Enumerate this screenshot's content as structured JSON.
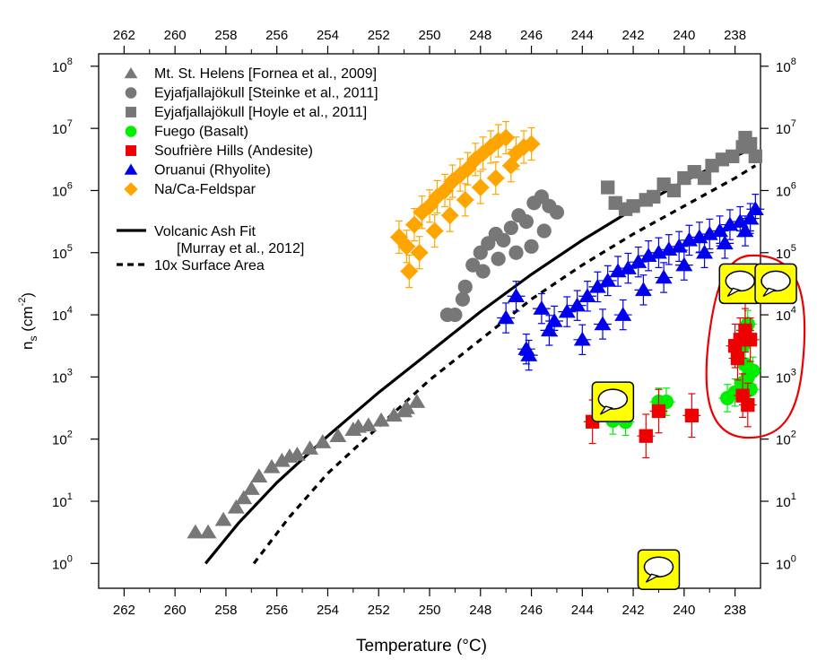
{
  "chart_data": {
    "type": "scatter",
    "xlabel": "Temperature (°C)",
    "ylabel_main": "n",
    "ylabel_sub": "s",
    "ylabel_unit_open": " (cm",
    "ylabel_unit_sup": "-2",
    "ylabel_unit_close": ")",
    "x_axis_reversed": true,
    "y_scale": "log",
    "xlim": [
      263,
      237
    ],
    "ylim_exponent": [
      -0.4,
      8.2
    ],
    "x_ticks": [
      "262",
      "260",
      "258",
      "256",
      "254",
      "252",
      "250",
      "248",
      "246",
      "244",
      "242",
      "240",
      "238"
    ],
    "y_ticks": [
      {
        "base": "10",
        "exp": "0"
      },
      {
        "base": "10",
        "exp": "1"
      },
      {
        "base": "10",
        "exp": "2"
      },
      {
        "base": "10",
        "exp": "3"
      },
      {
        "base": "10",
        "exp": "4"
      },
      {
        "base": "10",
        "exp": "5"
      },
      {
        "base": "10",
        "exp": "6"
      },
      {
        "base": "10",
        "exp": "7"
      },
      {
        "base": "10",
        "exp": "8"
      }
    ],
    "legend_placement": "top-left",
    "legend": [
      {
        "label": "Mt. St. Helens [Fornea et al., 2009]",
        "marker": "triangle",
        "color": "#777777"
      },
      {
        "label": "Eyjafjallajökull [Steinke et al., 2011]",
        "marker": "circle",
        "color": "#777777"
      },
      {
        "label": "Eyjafjallajökull [Hoyle et al., 2011]",
        "marker": "square",
        "color": "#777777"
      },
      {
        "label": "Fuego (Basalt)",
        "marker": "circle",
        "color": "#00ee00"
      },
      {
        "label": "Soufrière Hills (Andesite)",
        "marker": "square",
        "color": "#ee0000"
      },
      {
        "label": "Oruanui (Rhyolite)",
        "marker": "triangle",
        "color": "#0000ee"
      },
      {
        "label": "Na/Ca-Feldspar",
        "marker": "diamond",
        "color": "#ffa500"
      }
    ],
    "fit_legend": [
      {
        "label": "Volcanic Ash Fit",
        "style": "solid"
      },
      {
        "label": "[Murray et al., 2012]",
        "style": "none"
      },
      {
        "label": "10x Surface Area",
        "style": "dashed"
      }
    ],
    "series": [
      {
        "name": "Mt. St. Helens [Fornea et al., 2009]",
        "marker": "triangle",
        "color": "#777777",
        "errorbars": false,
        "points": [
          [
            259.2,
            0.5
          ],
          [
            258.7,
            0.5
          ],
          [
            258.1,
            0.7
          ],
          [
            257.6,
            0.9
          ],
          [
            257.3,
            1.05
          ],
          [
            257.0,
            1.2
          ],
          [
            256.7,
            1.4
          ],
          [
            256.2,
            1.55
          ],
          [
            255.8,
            1.65
          ],
          [
            255.2,
            1.75
          ],
          [
            254.7,
            1.85
          ],
          [
            254.2,
            1.95
          ],
          [
            253.6,
            2.05
          ],
          [
            253.0,
            2.15
          ],
          [
            252.4,
            2.22
          ],
          [
            251.9,
            2.3
          ],
          [
            251.4,
            2.38
          ],
          [
            251.0,
            2.45
          ],
          [
            250.5,
            2.6
          ],
          [
            250.9,
            2.5
          ],
          [
            252.8,
            2.2
          ],
          [
            255.5,
            1.72
          ]
        ]
      },
      {
        "name": "Eyjafjallajökull [Steinke et al., 2011]",
        "marker": "circle",
        "color": "#777777",
        "errorbars": false,
        "points": [
          [
            249.0,
            4.0
          ],
          [
            248.6,
            4.45
          ],
          [
            248.3,
            4.8
          ],
          [
            248.0,
            5.0
          ],
          [
            247.7,
            5.15
          ],
          [
            247.4,
            5.3
          ],
          [
            247.1,
            5.2
          ],
          [
            246.8,
            5.4
          ],
          [
            246.5,
            5.6
          ],
          [
            246.2,
            5.5
          ],
          [
            245.9,
            5.8
          ],
          [
            245.6,
            5.9
          ],
          [
            245.3,
            5.75
          ],
          [
            245.0,
            5.65
          ],
          [
            246.6,
            5.0
          ],
          [
            247.3,
            4.9
          ],
          [
            247.9,
            4.7
          ],
          [
            248.7,
            4.25
          ],
          [
            246.0,
            5.1
          ],
          [
            245.5,
            5.35
          ],
          [
            249.3,
            4.0
          ]
        ]
      },
      {
        "name": "Eyjafjallajökull [Hoyle et al., 2011]",
        "marker": "square",
        "color": "#777777",
        "errorbars": false,
        "points": [
          [
            243.0,
            6.05
          ],
          [
            242.7,
            5.8
          ],
          [
            242.3,
            5.7
          ],
          [
            242.0,
            5.75
          ],
          [
            241.5,
            5.85
          ],
          [
            241.2,
            5.9
          ],
          [
            240.8,
            6.1
          ],
          [
            240.4,
            6.0
          ],
          [
            240.0,
            6.2
          ],
          [
            239.6,
            6.3
          ],
          [
            239.2,
            6.2
          ],
          [
            238.9,
            6.4
          ],
          [
            238.5,
            6.5
          ],
          [
            238.1,
            6.55
          ],
          [
            237.7,
            6.7
          ],
          [
            237.4,
            6.75
          ],
          [
            237.2,
            6.55
          ],
          [
            237.6,
            6.85
          ]
        ]
      },
      {
        "name": "Fuego (Basalt)",
        "marker": "circle",
        "color": "#00ee00",
        "errorbars": true,
        "err": 0.22,
        "points": [
          [
            242.8,
            2.3
          ],
          [
            242.3,
            2.28
          ],
          [
            241.0,
            2.6
          ],
          [
            240.7,
            2.6
          ],
          [
            238.3,
            2.66
          ],
          [
            238.0,
            2.75
          ],
          [
            237.7,
            2.9
          ],
          [
            237.5,
            3.0
          ],
          [
            237.3,
            3.1
          ],
          [
            237.6,
            3.2
          ],
          [
            237.4,
            2.8
          ],
          [
            237.7,
            3.5
          ],
          [
            237.5,
            3.85
          ]
        ]
      },
      {
        "name": "Soufrière Hills (Andesite)",
        "marker": "square",
        "color": "#ee0000",
        "errorbars": true,
        "err": 0.35,
        "points": [
          [
            243.6,
            2.28
          ],
          [
            241.5,
            2.05
          ],
          [
            241.0,
            2.45
          ],
          [
            239.7,
            2.38
          ],
          [
            237.7,
            2.7
          ],
          [
            237.5,
            2.55
          ],
          [
            238.0,
            3.5
          ],
          [
            237.8,
            3.6
          ],
          [
            237.6,
            3.75
          ],
          [
            237.4,
            3.6
          ],
          [
            237.9,
            3.3
          ],
          [
            237.6,
            4.3
          ]
        ]
      },
      {
        "name": "Oruanui (Rhyolite)",
        "marker": "triangle",
        "color": "#0000ee",
        "errorbars": true,
        "err": 0.24,
        "points": [
          [
            247.0,
            3.95
          ],
          [
            246.6,
            4.3
          ],
          [
            246.2,
            3.45
          ],
          [
            246.1,
            3.35
          ],
          [
            245.6,
            4.1
          ],
          [
            245.1,
            3.9
          ],
          [
            244.6,
            4.05
          ],
          [
            244.2,
            4.15
          ],
          [
            243.8,
            4.3
          ],
          [
            243.4,
            4.45
          ],
          [
            243.0,
            4.55
          ],
          [
            242.6,
            4.7
          ],
          [
            242.2,
            4.75
          ],
          [
            241.8,
            4.85
          ],
          [
            241.4,
            4.95
          ],
          [
            241.0,
            5.0
          ],
          [
            240.6,
            5.05
          ],
          [
            240.2,
            5.1
          ],
          [
            239.8,
            5.2
          ],
          [
            239.4,
            5.25
          ],
          [
            239.0,
            5.3
          ],
          [
            238.6,
            5.35
          ],
          [
            238.2,
            5.45
          ],
          [
            237.8,
            5.5
          ],
          [
            237.4,
            5.55
          ],
          [
            237.2,
            5.7
          ],
          [
            245.3,
            3.75
          ],
          [
            244.0,
            3.6
          ],
          [
            243.2,
            3.85
          ],
          [
            242.4,
            4.0
          ],
          [
            241.6,
            4.4
          ],
          [
            240.8,
            4.6
          ],
          [
            240.0,
            4.8
          ],
          [
            239.2,
            5.0
          ],
          [
            238.4,
            5.15
          ],
          [
            237.6,
            5.35
          ]
        ]
      },
      {
        "name": "Na/Ca-Feldspar",
        "marker": "diamond",
        "color": "#ffa500",
        "errorbars": true,
        "err": 0.26,
        "points": [
          [
            251.2,
            5.25
          ],
          [
            250.9,
            5.1
          ],
          [
            250.6,
            5.45
          ],
          [
            250.3,
            5.65
          ],
          [
            250.0,
            5.75
          ],
          [
            249.7,
            5.9
          ],
          [
            249.4,
            6.0
          ],
          [
            249.1,
            6.15
          ],
          [
            248.8,
            6.25
          ],
          [
            248.5,
            6.35
          ],
          [
            248.2,
            6.5
          ],
          [
            247.9,
            6.6
          ],
          [
            247.6,
            6.7
          ],
          [
            247.3,
            6.8
          ],
          [
            247.0,
            6.85
          ],
          [
            246.6,
            6.6
          ],
          [
            246.3,
            6.7
          ],
          [
            246.0,
            6.75
          ],
          [
            250.8,
            4.7
          ],
          [
            250.4,
            5.0
          ],
          [
            249.8,
            5.35
          ],
          [
            249.2,
            5.6
          ],
          [
            248.6,
            5.85
          ],
          [
            248.0,
            6.05
          ],
          [
            247.4,
            6.2
          ],
          [
            246.8,
            6.4
          ]
        ]
      }
    ],
    "fit_lines": [
      {
        "name": "Volcanic Ash Fit",
        "style": "solid",
        "points": [
          [
            258.8,
            0.0
          ],
          [
            257.5,
            0.65
          ],
          [
            256.0,
            1.3
          ],
          [
            254.0,
            2.05
          ],
          [
            252.0,
            2.75
          ],
          [
            250.0,
            3.4
          ],
          [
            248.0,
            4.05
          ],
          [
            246.0,
            4.65
          ],
          [
            244.0,
            5.2
          ],
          [
            242.0,
            5.7
          ],
          [
            240.0,
            6.15
          ],
          [
            238.0,
            6.55
          ],
          [
            237.2,
            6.7
          ]
        ]
      },
      {
        "name": "10x Surface Area",
        "style": "dashed",
        "points": [
          [
            256.9,
            0.0
          ],
          [
            255.5,
            0.75
          ],
          [
            254.0,
            1.45
          ],
          [
            252.0,
            2.2
          ],
          [
            250.0,
            2.95
          ],
          [
            248.0,
            3.6
          ],
          [
            246.0,
            4.25
          ],
          [
            244.0,
            4.8
          ],
          [
            242.0,
            5.3
          ],
          [
            240.0,
            5.75
          ],
          [
            238.0,
            6.2
          ],
          [
            237.2,
            6.4
          ]
        ]
      }
    ]
  },
  "annotations": {
    "highlight_color": "#ee0000",
    "comment_icons": [
      {
        "name": "comment-icon-left",
        "x": 242.8,
        "y": 2.6
      },
      {
        "name": "comment-icon-right-a",
        "x": 237.8,
        "y": 4.5
      },
      {
        "name": "comment-icon-right-b",
        "x": 236.4,
        "y": 4.5
      },
      {
        "name": "comment-icon-bottom",
        "x": 241.0,
        "y": -0.1
      }
    ]
  }
}
